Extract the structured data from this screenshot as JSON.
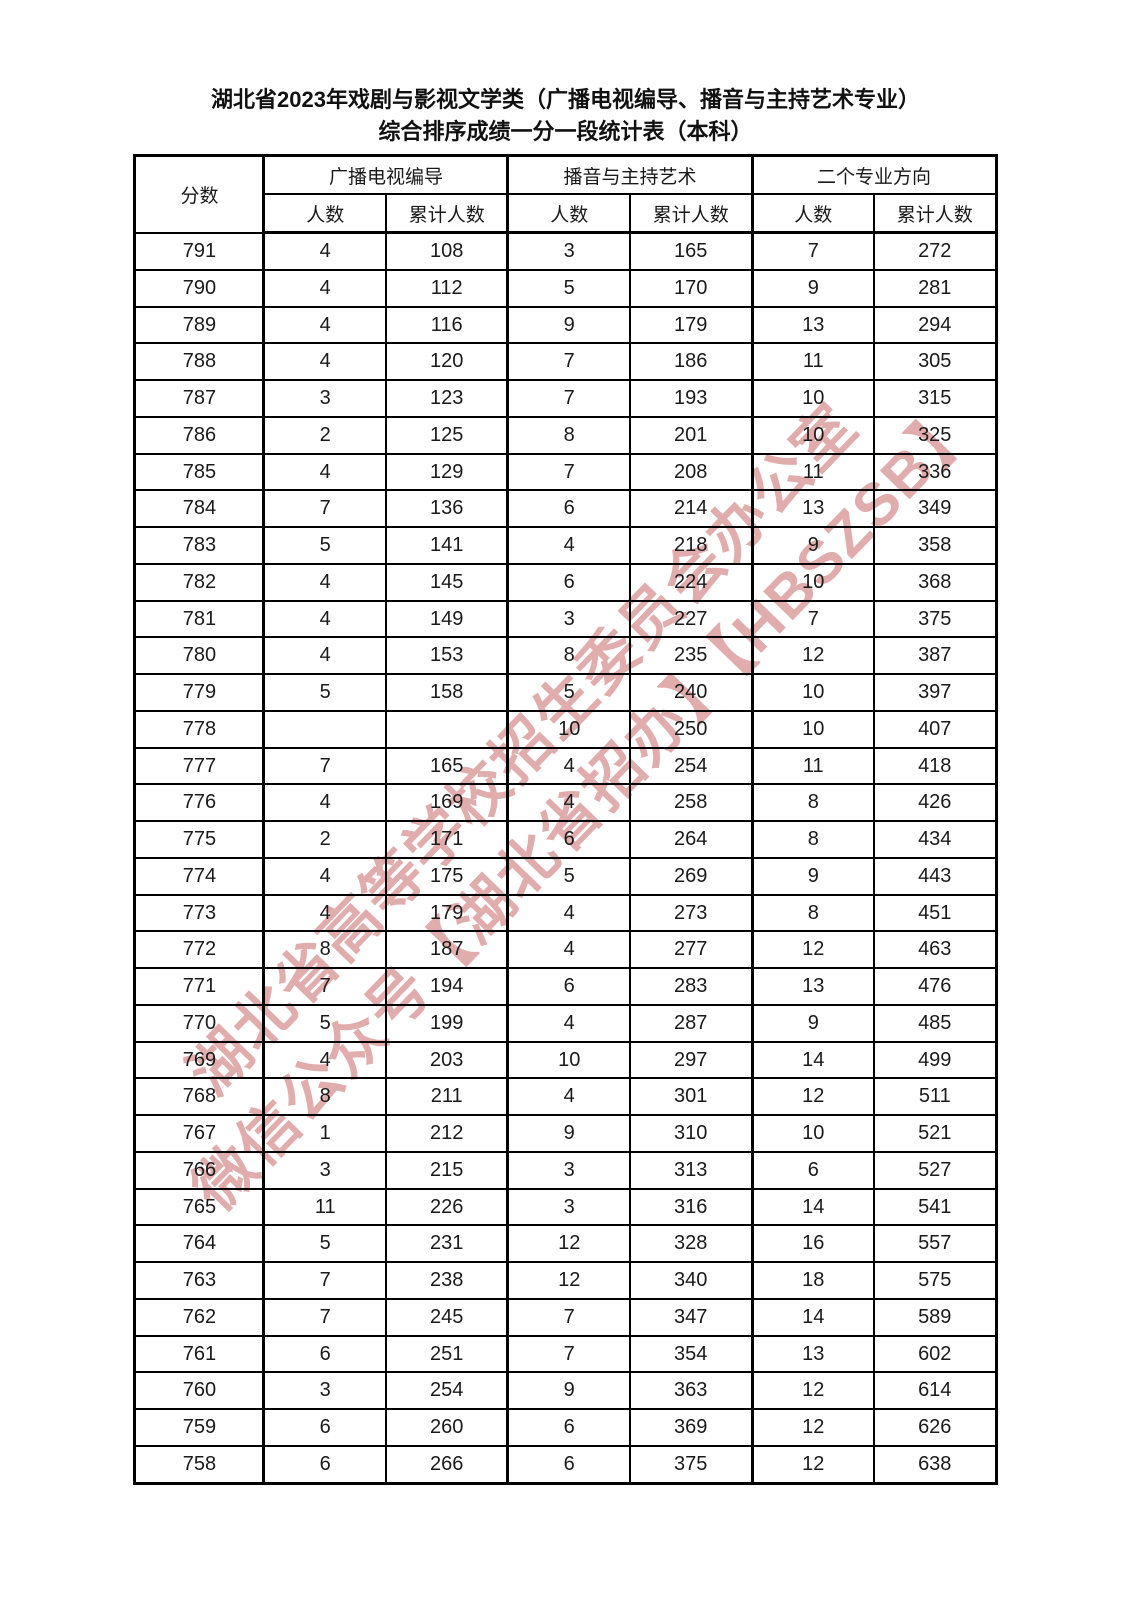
{
  "page": {
    "title_line1": "湖北省2023年戏剧与影视文学类（广播电视编导、播音与主持艺术专业）",
    "title_line2": "综合排序成绩一分一段统计表（本科）"
  },
  "table": {
    "score_header": "分数",
    "group_headers": [
      "广播电视编导",
      "播音与主持艺术",
      "二个专业方向"
    ],
    "sub_headers": {
      "count": "人数",
      "cumulative": "累计人数"
    },
    "rows": [
      [
        "791",
        "4",
        "108",
        "3",
        "165",
        "7",
        "272"
      ],
      [
        "790",
        "4",
        "112",
        "5",
        "170",
        "9",
        "281"
      ],
      [
        "789",
        "4",
        "116",
        "9",
        "179",
        "13",
        "294"
      ],
      [
        "788",
        "4",
        "120",
        "7",
        "186",
        "11",
        "305"
      ],
      [
        "787",
        "3",
        "123",
        "7",
        "193",
        "10",
        "315"
      ],
      [
        "786",
        "2",
        "125",
        "8",
        "201",
        "10",
        "325"
      ],
      [
        "785",
        "4",
        "129",
        "7",
        "208",
        "11",
        "336"
      ],
      [
        "784",
        "7",
        "136",
        "6",
        "214",
        "13",
        "349"
      ],
      [
        "783",
        "5",
        "141",
        "4",
        "218",
        "9",
        "358"
      ],
      [
        "782",
        "4",
        "145",
        "6",
        "224",
        "10",
        "368"
      ],
      [
        "781",
        "4",
        "149",
        "3",
        "227",
        "7",
        "375"
      ],
      [
        "780",
        "4",
        "153",
        "8",
        "235",
        "12",
        "387"
      ],
      [
        "779",
        "5",
        "158",
        "5",
        "240",
        "10",
        "397"
      ],
      [
        "778",
        "",
        "",
        "10",
        "250",
        "10",
        "407"
      ],
      [
        "777",
        "7",
        "165",
        "4",
        "254",
        "11",
        "418"
      ],
      [
        "776",
        "4",
        "169",
        "4",
        "258",
        "8",
        "426"
      ],
      [
        "775",
        "2",
        "171",
        "6",
        "264",
        "8",
        "434"
      ],
      [
        "774",
        "4",
        "175",
        "5",
        "269",
        "9",
        "443"
      ],
      [
        "773",
        "4",
        "179",
        "4",
        "273",
        "8",
        "451"
      ],
      [
        "772",
        "8",
        "187",
        "4",
        "277",
        "12",
        "463"
      ],
      [
        "771",
        "7",
        "194",
        "6",
        "283",
        "13",
        "476"
      ],
      [
        "770",
        "5",
        "199",
        "4",
        "287",
        "9",
        "485"
      ],
      [
        "769",
        "4",
        "203",
        "10",
        "297",
        "14",
        "499"
      ],
      [
        "768",
        "8",
        "211",
        "4",
        "301",
        "12",
        "511"
      ],
      [
        "767",
        "1",
        "212",
        "9",
        "310",
        "10",
        "521"
      ],
      [
        "766",
        "3",
        "215",
        "3",
        "313",
        "6",
        "527"
      ],
      [
        "765",
        "11",
        "226",
        "3",
        "316",
        "14",
        "541"
      ],
      [
        "764",
        "5",
        "231",
        "12",
        "328",
        "16",
        "557"
      ],
      [
        "763",
        "7",
        "238",
        "12",
        "340",
        "18",
        "575"
      ],
      [
        "762",
        "7",
        "245",
        "7",
        "347",
        "14",
        "589"
      ],
      [
        "761",
        "6",
        "251",
        "7",
        "354",
        "13",
        "602"
      ],
      [
        "760",
        "3",
        "254",
        "9",
        "363",
        "12",
        "614"
      ],
      [
        "759",
        "6",
        "260",
        "6",
        "369",
        "12",
        "626"
      ],
      [
        "758",
        "6",
        "266",
        "6",
        "375",
        "12",
        "638"
      ]
    ]
  },
  "watermark": {
    "line1": "湖北省高等学校招生委员会办公室",
    "line2": "微信公众号【湖北省招办】【HBSZSB】",
    "color": "#c96a6a"
  }
}
